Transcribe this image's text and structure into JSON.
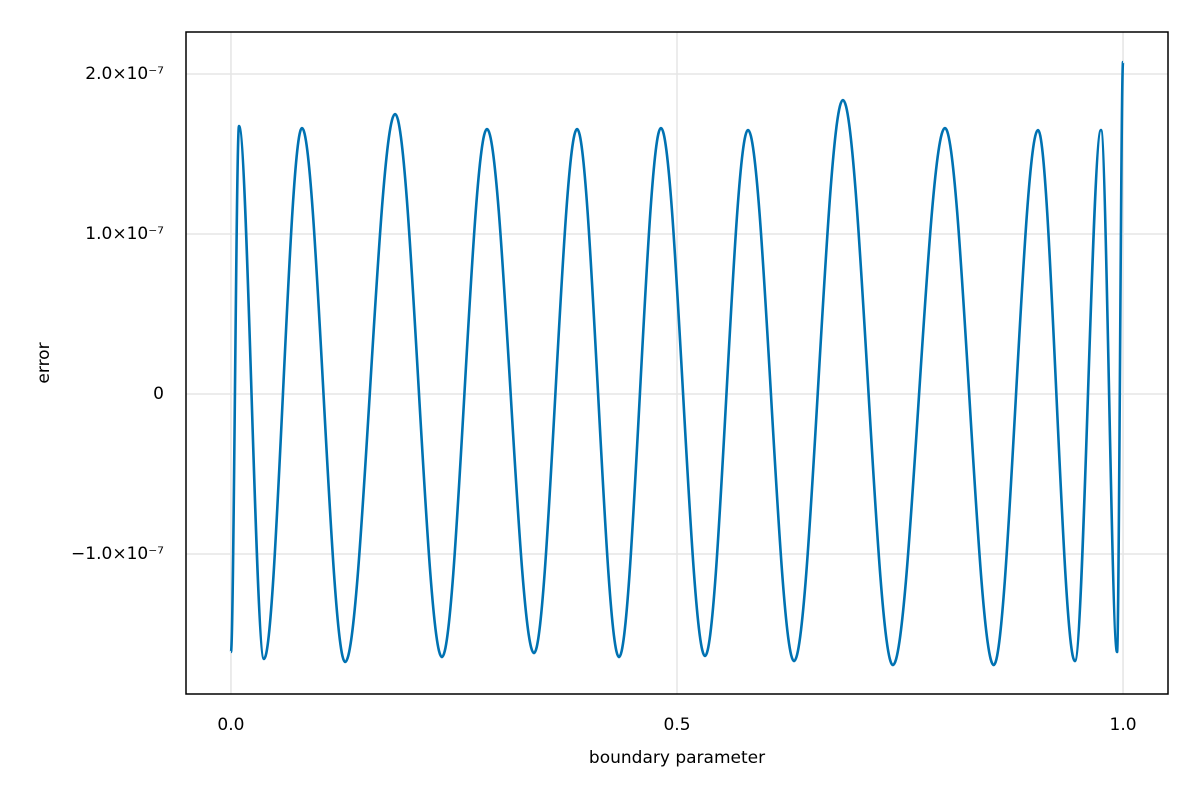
{
  "chart_data": {
    "type": "line",
    "x_label": "boundary parameter",
    "y_label": "error",
    "x": [
      0,
      0.009,
      0.037,
      0.0796,
      0.128,
      0.184,
      0.2365,
      0.287,
      0.3397,
      0.388,
      0.435,
      0.482,
      0.5314,
      0.5796,
      0.6312,
      0.686,
      0.742,
      0.8004,
      0.855,
      0.9047,
      0.946,
      0.9753,
      0.9933,
      1
    ],
    "series": [
      {
        "color": "#0072b2",
        "values": [
          -1.6125e-07,
          1.675e-07,
          -1.656e-07,
          1.6625e-07,
          -1.675e-07,
          1.75e-07,
          -1.644e-07,
          1.656e-07,
          -1.619e-07,
          1.656e-07,
          -1.644e-07,
          1.6625e-07,
          -1.6375e-07,
          1.65e-07,
          -1.669e-07,
          1.8375e-07,
          -1.694e-07,
          1.6625e-07,
          -1.694e-07,
          1.65e-07,
          -1.669e-07,
          1.65e-07,
          -1.6125e-07,
          2.075e-07
        ]
      }
    ],
    "xlim": [
      -0.0504,
      1.0504
    ],
    "ylim": [
      -1.875e-07,
      2.2625e-07
    ],
    "xticks": [
      {
        "value": 0,
        "label": "0.0"
      },
      0.5,
      {
        "value": 1,
        "label": "1.0"
      }
    ],
    "yticks": [
      {
        "value": -1e-07,
        "label": "−1.0×10⁻⁷"
      },
      0,
      {
        "value": 1e-07,
        "label": "1.0×10⁻⁷"
      },
      {
        "value": 2e-07,
        "label": "2.0×10⁻⁷"
      }
    ],
    "grid": true
  }
}
